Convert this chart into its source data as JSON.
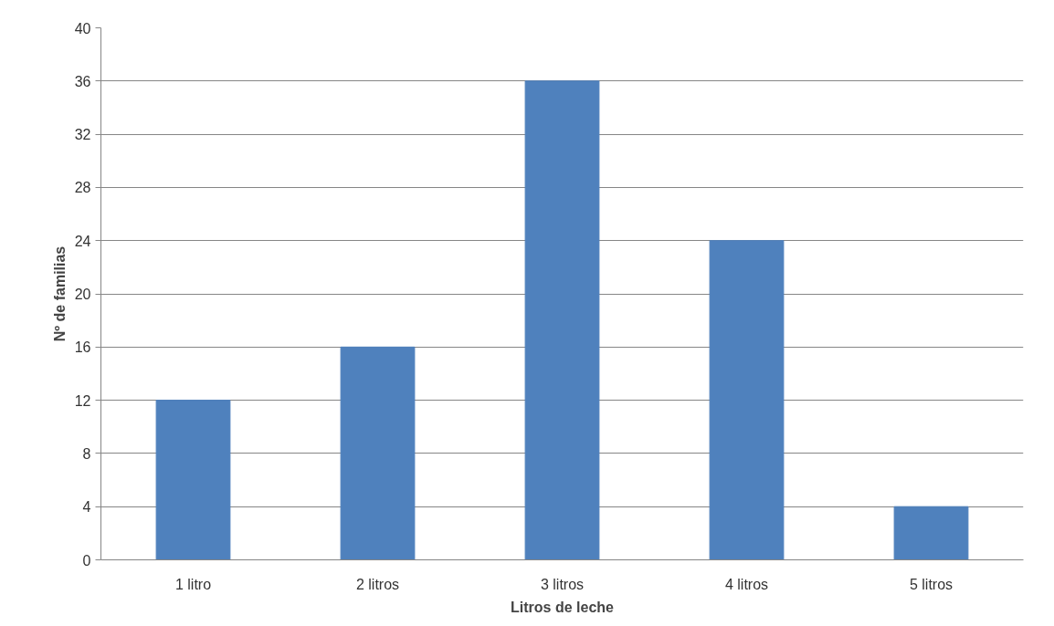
{
  "chart_data": {
    "type": "bar",
    "xlabel": "Litros de leche",
    "ylabel": "Nº de familias",
    "categories": [
      "1 litro",
      "2 litros",
      "3 litros",
      "4 litros",
      "5 litros"
    ],
    "values": [
      12,
      16,
      36,
      24,
      4
    ],
    "color": "#4f81bd",
    "ylim": [
      0,
      40
    ],
    "yticks": [
      0,
      4,
      8,
      12,
      16,
      20,
      24,
      28,
      32,
      36,
      40
    ],
    "grid": "y"
  }
}
